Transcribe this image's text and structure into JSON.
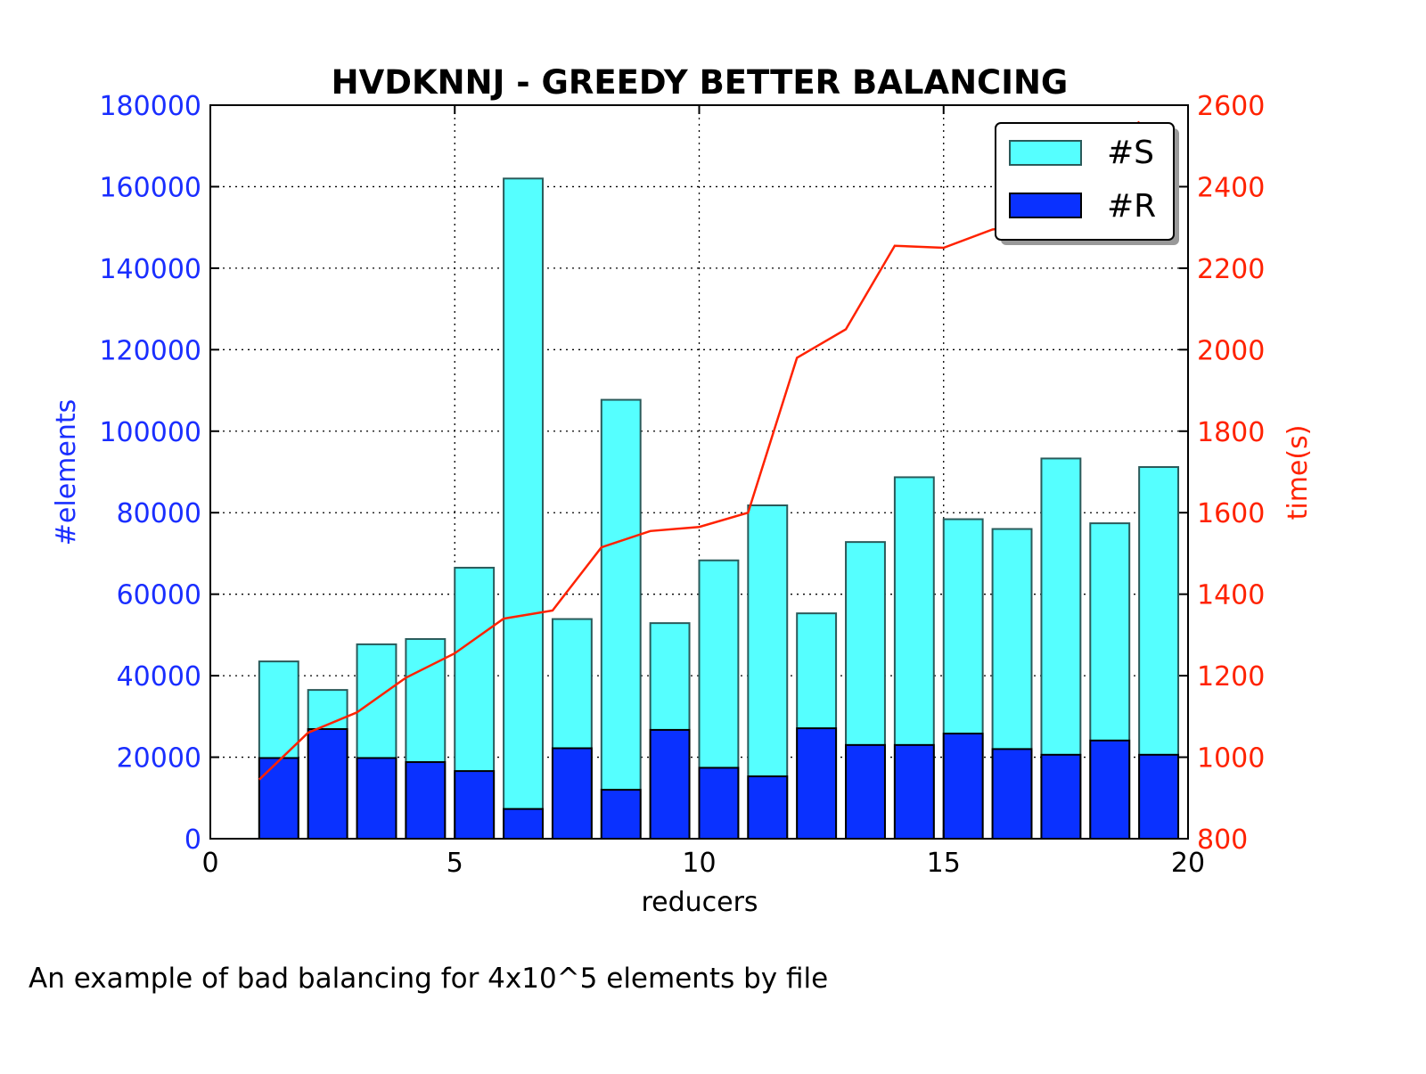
{
  "caption": "An example of bad balancing for 4x10^5 elements by file",
  "chart_data": {
    "type": "bar",
    "title": "HVDKNNJ - GREEDY BETTER BALANCING",
    "xlabel": "reducers",
    "ylabel": "#elements",
    "y2label": "time(s)",
    "xlim": [
      0,
      20
    ],
    "ylim": [
      0,
      180000
    ],
    "y2lim": [
      800,
      2600
    ],
    "xticks": [
      "0",
      "5",
      "10",
      "15",
      "20"
    ],
    "yticks": [
      "0",
      "20000",
      "40000",
      "60000",
      "80000",
      "100000",
      "120000",
      "140000",
      "160000",
      "180000"
    ],
    "y2ticks": [
      "800",
      "1000",
      "1200",
      "1400",
      "1600",
      "1800",
      "2000",
      "2200",
      "2400",
      "2600"
    ],
    "grid": true,
    "legend_position": "top-right",
    "x": [
      1,
      2,
      3,
      4,
      5,
      6,
      7,
      8,
      9,
      10,
      11,
      12,
      13,
      14,
      15,
      16,
      17,
      18,
      19
    ],
    "series": [
      {
        "name": "#S",
        "type": "bar",
        "axis": "left",
        "color": "#55ffff",
        "values": [
          43500,
          36500,
          47700,
          49000,
          66500,
          162000,
          53900,
          107700,
          52900,
          68300,
          81800,
          55300,
          72800,
          88700,
          78400,
          76000,
          93300,
          77400,
          91200
        ]
      },
      {
        "name": "#R",
        "type": "bar",
        "axis": "left",
        "color": "#0a31ff",
        "values": [
          19800,
          26900,
          19800,
          18800,
          16600,
          7300,
          22200,
          12000,
          26700,
          17400,
          15300,
          27100,
          23000,
          23000,
          25800,
          22000,
          20600,
          24100,
          20600
        ]
      },
      {
        "name": "time(s)",
        "type": "line",
        "axis": "right",
        "color": "#ff2200",
        "x": [
          1,
          2,
          3,
          4,
          5,
          6,
          7,
          8,
          9,
          10,
          11,
          12,
          13,
          14,
          15,
          16,
          17,
          18,
          19
        ],
        "values": [
          945,
          1060,
          1110,
          1195,
          1255,
          1340,
          1360,
          1515,
          1555,
          1565,
          1600,
          1980,
          2050,
          2255,
          2250,
          2295,
          2310,
          2365,
          2560
        ]
      }
    ]
  }
}
